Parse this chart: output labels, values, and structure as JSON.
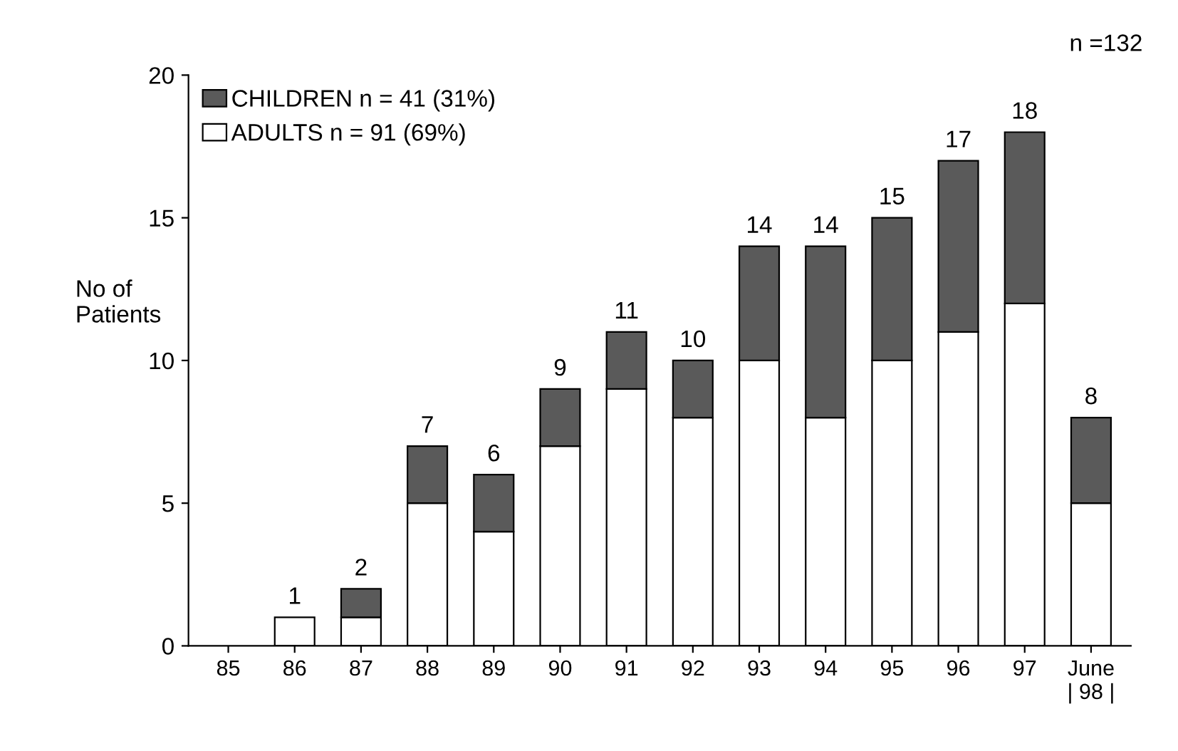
{
  "chart_data": {
    "type": "bar",
    "stacked": true,
    "ylabel": "No of\nPatients",
    "categories": [
      "85",
      "86",
      "87",
      "88",
      "89",
      "90",
      "91",
      "92",
      "93",
      "94",
      "95",
      "96",
      "97",
      "June\n| 98 |"
    ],
    "series": [
      {
        "name": "ADULTS n = 91 (69%)",
        "color": "#ffffff",
        "values": [
          0,
          1,
          1,
          5,
          4,
          7,
          9,
          8,
          10,
          8,
          10,
          11,
          12,
          5
        ]
      },
      {
        "name": "CHILDREN n = 41 (31%)",
        "color": "#5a5a5a",
        "values": [
          0,
          0,
          1,
          2,
          2,
          2,
          2,
          2,
          4,
          6,
          5,
          6,
          6,
          3
        ]
      }
    ],
    "totals": [
      null,
      "1",
      "2",
      "7",
      "6",
      "9",
      "11",
      "10",
      "14",
      "14",
      "15",
      "17",
      "18",
      "8"
    ],
    "ylim": [
      0,
      20
    ],
    "yticks": [
      0,
      5,
      10,
      15,
      20
    ],
    "grid": false,
    "legend": "top left",
    "annotations": [
      "n =132"
    ]
  }
}
